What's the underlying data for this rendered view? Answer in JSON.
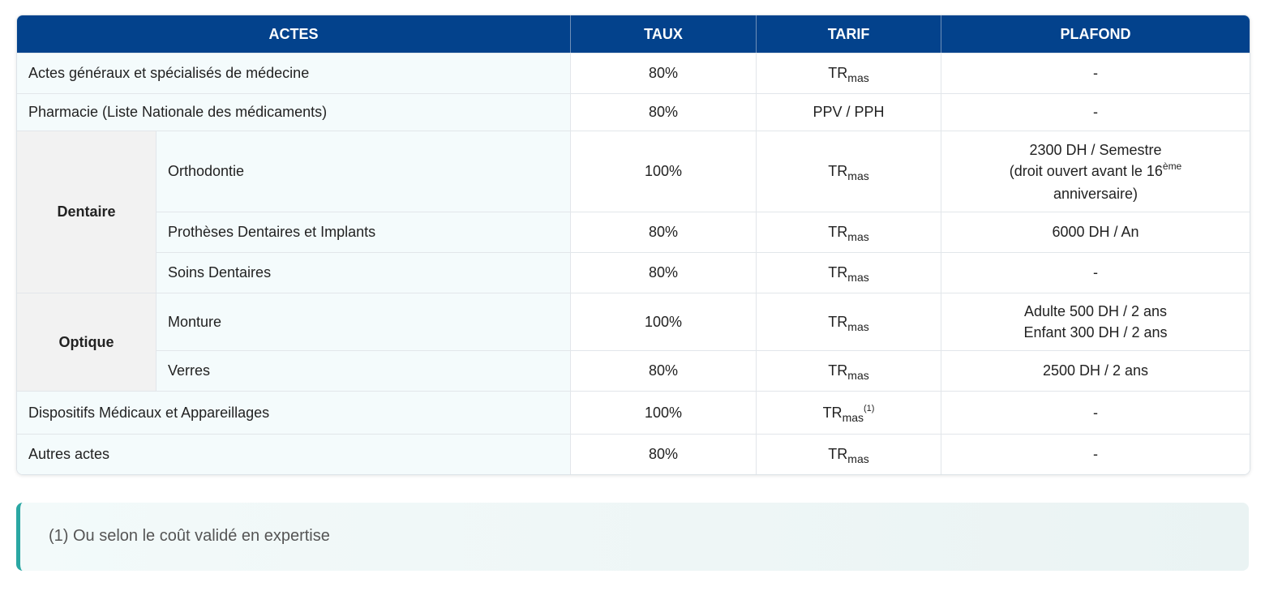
{
  "table": {
    "headers": {
      "actes": "ACTES",
      "taux": "TAUX",
      "tarif": "TARIF",
      "plafond": "PLAFOND"
    },
    "tarif_base": "TR",
    "tarif_sub": "mas",
    "rows": {
      "actes_generaux": {
        "label": "Actes généraux et spécialisés de médecine",
        "taux": "80%",
        "plafond": "-"
      },
      "pharmacie": {
        "label": "Pharmacie (Liste Nationale des médicaments)",
        "taux": "80%",
        "tarif": "PPV / PPH",
        "plafond": "-"
      },
      "dispositifs": {
        "label": "Dispositifs Médicaux et Appareillages",
        "taux": "100%",
        "tarif_note": "(1)",
        "plafond": "-"
      },
      "autres": {
        "label": "Autres actes",
        "taux": "80%",
        "plafond": "-"
      }
    },
    "dentaire": {
      "label": "Dentaire",
      "orthodontie": {
        "label": "Orthodontie",
        "taux": "100%",
        "plafond_line1": "2300 DH / Semestre",
        "plafond_line2_pre": "(droit ouvert avant le 16",
        "plafond_line2_sup": "ème",
        "plafond_line3": "anniversaire)"
      },
      "protheses": {
        "label": "Prothèses Dentaires et Implants",
        "taux": "80%",
        "plafond": "6000 DH / An"
      },
      "soins": {
        "label": "Soins Dentaires",
        "taux": "80%",
        "plafond": "-"
      }
    },
    "optique": {
      "label": "Optique",
      "monture": {
        "label": "Monture",
        "taux": "100%",
        "plafond_line1": "Adulte 500 DH / 2 ans",
        "plafond_line2": "Enfant 300 DH / 2 ans"
      },
      "verres": {
        "label": "Verres",
        "taux": "80%",
        "plafond": "2500 DH / 2 ans"
      }
    }
  },
  "note": {
    "text": "(1) Ou selon le coût validé en expertise"
  }
}
